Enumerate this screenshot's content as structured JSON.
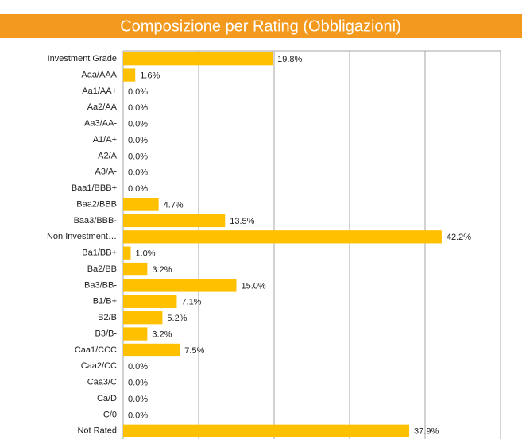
{
  "chart_data": {
    "type": "hbar",
    "title": "Composizione per Rating (Obbligazioni)",
    "categories": [
      "Investment Grade",
      "Aaa/AAA",
      "Aa1/AA+",
      "Aa2/AA",
      "Aa3/AA-",
      "A1/A+",
      "A2/A",
      "A3/A-",
      "Baa1/BBB+",
      "Baa2/BBB",
      "Baa3/BBB-",
      "Non Investment…",
      "Ba1/BB+",
      "Ba2/BB",
      "Ba3/BB-",
      "B1/B+",
      "B2/B",
      "B3/B-",
      "Caa1/CCC",
      "Caa2/CC",
      "Caa3/C",
      "Ca/D",
      "C/0",
      "Not Rated"
    ],
    "values": [
      19.8,
      1.6,
      0,
      0,
      0,
      0,
      0,
      0,
      0,
      4.7,
      13.5,
      42.2,
      1.0,
      3.2,
      15.0,
      7.1,
      5.2,
      3.2,
      7.5,
      0,
      0,
      0,
      0,
      37.9
    ],
    "value_labels": [
      "19.8%",
      "1.6%",
      "0.0%",
      "0.0%",
      "0.0%",
      "0.0%",
      "0.0%",
      "0.0%",
      "0.0%",
      "4.7%",
      "13.5%",
      "42.2%",
      "1.0%",
      "3.2%",
      "15.0%",
      "7.1%",
      "5.2%",
      "3.2%",
      "7.5%",
      "0.0%",
      "0.0%",
      "0.0%",
      "0.0%",
      "37.9%"
    ],
    "color": "#ffc000",
    "title_color": "#f39a1e",
    "xlim": [
      0,
      50
    ],
    "xticks": [
      0,
      10,
      20,
      30,
      40,
      50
    ],
    "grid": true
  }
}
